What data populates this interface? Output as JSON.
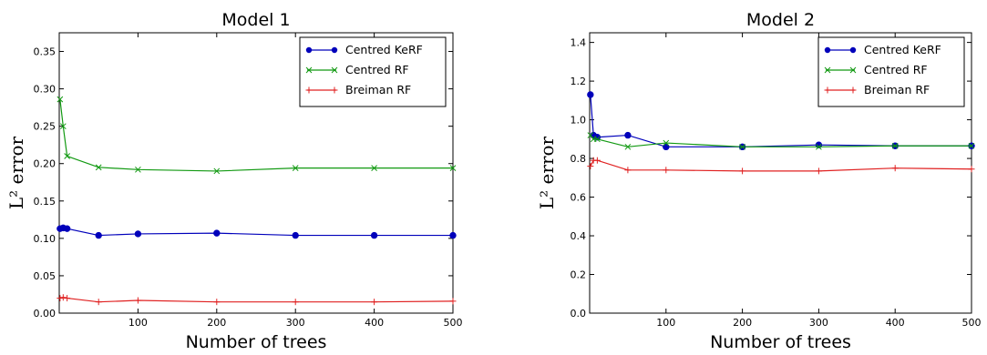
{
  "chart_data": [
    {
      "type": "line",
      "title": "Model 1",
      "xlabel": "Number of trees",
      "ylabel": "L² error",
      "xlim": [
        0,
        500
      ],
      "ylim": [
        0.0,
        0.375
      ],
      "xticks": [
        "100",
        "200",
        "300",
        "400",
        "500"
      ],
      "xtick_values": [
        100,
        200,
        300,
        400,
        500
      ],
      "yticks": [
        "0.00",
        "0.05",
        "0.10",
        "0.15",
        "0.20",
        "0.25",
        "0.30",
        "0.35"
      ],
      "ytick_values": [
        0.0,
        0.05,
        0.1,
        0.15,
        0.2,
        0.25,
        0.3,
        0.35
      ],
      "grid": false,
      "legend_position": "top-right",
      "x": [
        1,
        5,
        10,
        50,
        100,
        200,
        300,
        400,
        500
      ],
      "series": [
        {
          "name": "Centred KeRF",
          "color": "#0000bb",
          "marker": "circle",
          "values": [
            0.113,
            0.114,
            0.113,
            0.104,
            0.106,
            0.107,
            0.104,
            0.104,
            0.104
          ]
        },
        {
          "name": "Centred RF",
          "color": "#119911",
          "marker": "x",
          "values": [
            0.286,
            0.25,
            0.21,
            0.195,
            0.192,
            0.19,
            0.194,
            0.194,
            0.194
          ]
        },
        {
          "name": "Breiman RF",
          "color": "#e02020",
          "marker": "plus",
          "values": [
            0.02,
            0.021,
            0.02,
            0.015,
            0.017,
            0.015,
            0.015,
            0.015,
            0.016
          ]
        }
      ]
    },
    {
      "type": "line",
      "title": "Model 2",
      "xlabel": "Number of trees",
      "ylabel": "L² error",
      "xlim": [
        0,
        500
      ],
      "ylim": [
        0.0,
        1.45
      ],
      "xticks": [
        "100",
        "200",
        "300",
        "400",
        "500"
      ],
      "xtick_values": [
        100,
        200,
        300,
        400,
        500
      ],
      "yticks": [
        "0.0",
        "0.2",
        "0.4",
        "0.6",
        "0.8",
        "1.0",
        "1.2",
        "1.4"
      ],
      "ytick_values": [
        0.0,
        0.2,
        0.4,
        0.6,
        0.8,
        1.0,
        1.2,
        1.4
      ],
      "grid": false,
      "legend_position": "top-right",
      "x": [
        1,
        5,
        10,
        50,
        100,
        200,
        300,
        400,
        500
      ],
      "series": [
        {
          "name": "Centred KeRF",
          "color": "#0000bb",
          "marker": "circle",
          "values": [
            1.13,
            0.92,
            0.91,
            0.92,
            0.86,
            0.86,
            0.87,
            0.865,
            0.865
          ]
        },
        {
          "name": "Centred RF",
          "color": "#119911",
          "marker": "x",
          "values": [
            0.92,
            0.9,
            0.9,
            0.86,
            0.88,
            0.86,
            0.86,
            0.865,
            0.865
          ]
        },
        {
          "name": "Breiman RF",
          "color": "#e02020",
          "marker": "plus",
          "values": [
            0.76,
            0.79,
            0.79,
            0.74,
            0.74,
            0.735,
            0.735,
            0.75,
            0.745
          ]
        }
      ]
    }
  ]
}
